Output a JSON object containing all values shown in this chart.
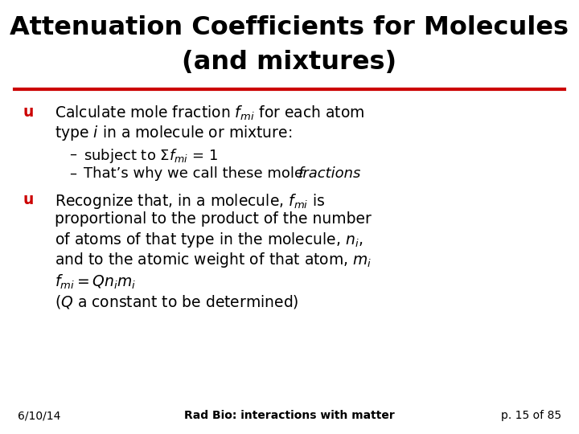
{
  "title_line1": "Attenuation Coefficients for Molecules",
  "title_line2": "(and mixtures)",
  "title_fontsize": 23,
  "title_color": "#000000",
  "red_line_color": "#cc0000",
  "bullet_color": "#cc0000",
  "bullet_char": "u",
  "body_color": "#000000",
  "bg_color": "#ffffff",
  "footer_left": "6/10/14",
  "footer_center": "Rad Bio: interactions with matter",
  "footer_right": "p. 15 of 85",
  "footer_fontsize": 10,
  "body_fontsize": 13.5,
  "sub_fontsize": 13.0
}
